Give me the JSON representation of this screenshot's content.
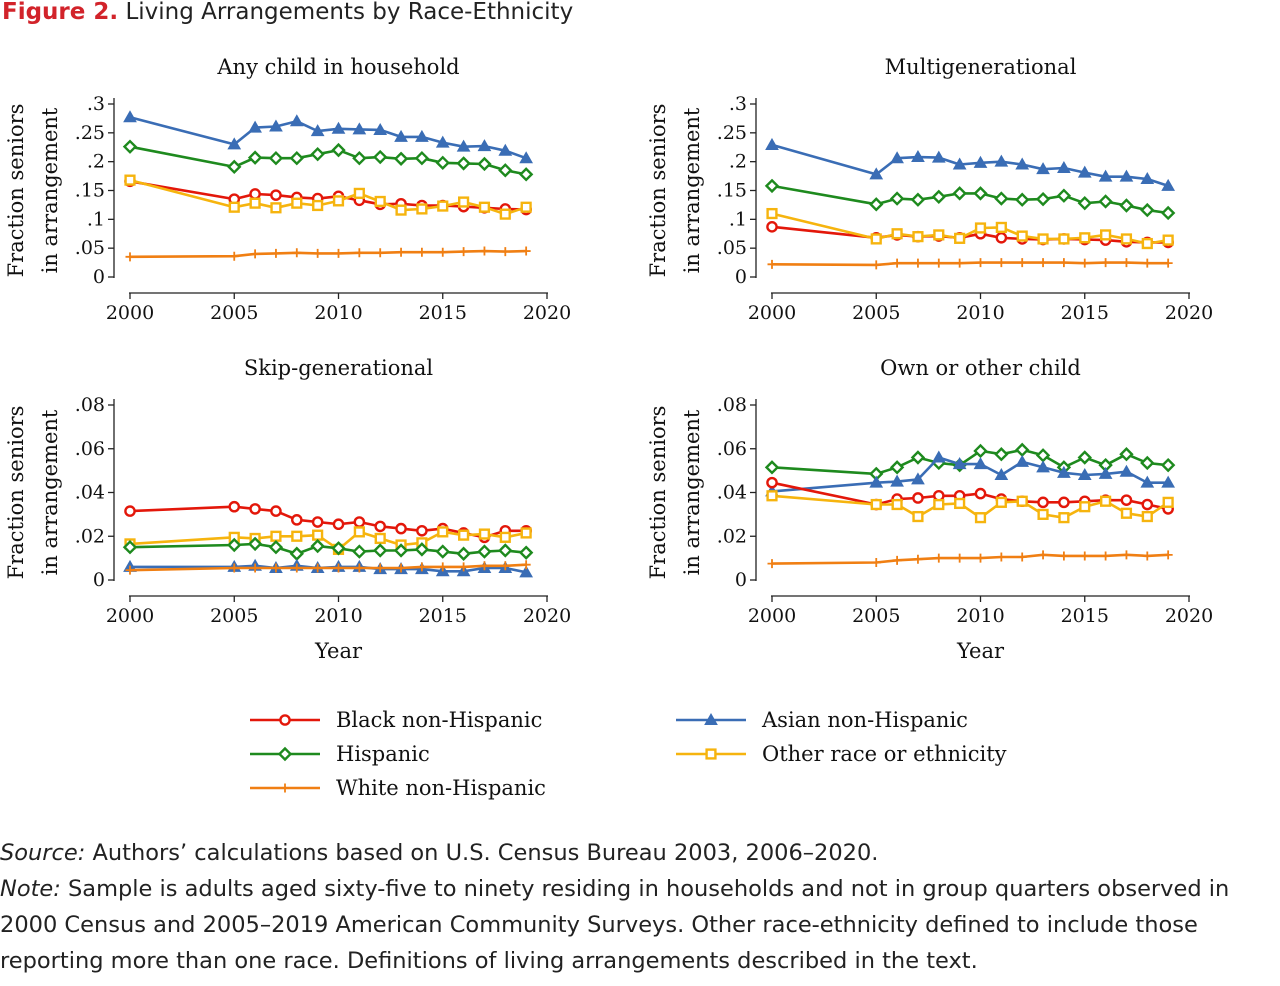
{
  "figure": {
    "number": "Figure 2.",
    "title": "Living Arrangements by Race-Ethnicity"
  },
  "legend": {
    "placement": "bottom",
    "entries": [
      {
        "key": "black",
        "label": "Black non-Hispanic"
      },
      {
        "key": "asian",
        "label": "Asian non-Hispanic"
      },
      {
        "key": "hispanic",
        "label": "Hispanic"
      },
      {
        "key": "other",
        "label": "Other race or ethnicity"
      },
      {
        "key": "white",
        "label": "White non-Hispanic"
      }
    ]
  },
  "styles": {
    "black": {
      "color": "#e3170a",
      "marker": "circle"
    },
    "hispanic": {
      "color": "#1e8a1e",
      "marker": "diamond"
    },
    "white": {
      "color": "#f07f13",
      "marker": "plus"
    },
    "asian": {
      "color": "#3a6db5",
      "marker": "triangle"
    },
    "other": {
      "color": "#f6b40e",
      "marker": "square"
    }
  },
  "chart_data": [
    {
      "type": "line",
      "title": "Any child in household",
      "ylabel": "Fraction seniors in arrangement",
      "xlabel": "",
      "xlim": [
        2000,
        2020
      ],
      "ylim": [
        0,
        0.3
      ],
      "xticks": [
        2000,
        2005,
        2010,
        2015,
        2020
      ],
      "xticklabels": [
        "2000",
        "2005",
        "2010",
        "2015",
        "2020"
      ],
      "yticks": [
        0,
        0.05,
        0.1,
        0.15,
        0.2,
        0.25,
        0.3
      ],
      "yticklabels": [
        "0",
        ".05",
        ".1",
        ".15",
        ".2",
        ".25",
        ".3"
      ],
      "x": [
        2000,
        2005,
        2006,
        2007,
        2008,
        2009,
        2010,
        2011,
        2012,
        2013,
        2014,
        2015,
        2016,
        2017,
        2018,
        2019
      ],
      "series": [
        {
          "key": "asian",
          "values": [
            0.277,
            0.23,
            0.259,
            0.261,
            0.27,
            0.253,
            0.257,
            0.256,
            0.255,
            0.243,
            0.243,
            0.233,
            0.226,
            0.227,
            0.219,
            0.206
          ]
        },
        {
          "key": "hispanic",
          "values": [
            0.226,
            0.191,
            0.207,
            0.206,
            0.206,
            0.213,
            0.22,
            0.206,
            0.208,
            0.205,
            0.206,
            0.198,
            0.197,
            0.196,
            0.185,
            0.178
          ]
        },
        {
          "key": "black",
          "values": [
            0.166,
            0.135,
            0.144,
            0.142,
            0.138,
            0.136,
            0.14,
            0.133,
            0.126,
            0.127,
            0.124,
            0.124,
            0.122,
            0.12,
            0.118,
            0.117
          ]
        },
        {
          "key": "other",
          "values": [
            0.168,
            0.121,
            0.128,
            0.12,
            0.128,
            0.124,
            0.132,
            0.145,
            0.131,
            0.116,
            0.118,
            0.123,
            0.13,
            0.121,
            0.109,
            0.121
          ]
        },
        {
          "key": "white",
          "values": [
            0.035,
            0.036,
            0.04,
            0.041,
            0.042,
            0.041,
            0.041,
            0.042,
            0.042,
            0.043,
            0.043,
            0.043,
            0.044,
            0.045,
            0.044,
            0.045
          ]
        }
      ]
    },
    {
      "type": "line",
      "title": "Multigenerational",
      "ylabel": "Fraction seniors in arrangement",
      "xlabel": "",
      "xlim": [
        2000,
        2020
      ],
      "ylim": [
        0,
        0.3
      ],
      "xticks": [
        2000,
        2005,
        2010,
        2015,
        2020
      ],
      "xticklabels": [
        "2000",
        "2005",
        "2010",
        "2015",
        "2020"
      ],
      "yticks": [
        0,
        0.05,
        0.1,
        0.15,
        0.2,
        0.25,
        0.3
      ],
      "yticklabels": [
        "0",
        ".05",
        ".1",
        ".15",
        ".2",
        ".25",
        ".3"
      ],
      "x": [
        2000,
        2005,
        2006,
        2007,
        2008,
        2009,
        2010,
        2011,
        2012,
        2013,
        2014,
        2015,
        2016,
        2017,
        2018,
        2019
      ],
      "series": [
        {
          "key": "asian",
          "values": [
            0.229,
            0.178,
            0.206,
            0.208,
            0.207,
            0.195,
            0.198,
            0.2,
            0.195,
            0.187,
            0.189,
            0.181,
            0.174,
            0.174,
            0.17,
            0.158
          ]
        },
        {
          "key": "hispanic",
          "values": [
            0.158,
            0.126,
            0.136,
            0.134,
            0.139,
            0.145,
            0.145,
            0.136,
            0.134,
            0.135,
            0.141,
            0.128,
            0.131,
            0.124,
            0.116,
            0.111
          ]
        },
        {
          "key": "black",
          "values": [
            0.087,
            0.068,
            0.073,
            0.07,
            0.071,
            0.068,
            0.075,
            0.068,
            0.066,
            0.065,
            0.066,
            0.065,
            0.064,
            0.061,
            0.06,
            0.06
          ]
        },
        {
          "key": "other",
          "values": [
            0.11,
            0.066,
            0.075,
            0.07,
            0.073,
            0.067,
            0.085,
            0.086,
            0.071,
            0.066,
            0.066,
            0.068,
            0.073,
            0.066,
            0.058,
            0.064
          ]
        },
        {
          "key": "white",
          "values": [
            0.022,
            0.021,
            0.024,
            0.024,
            0.024,
            0.024,
            0.025,
            0.025,
            0.025,
            0.025,
            0.025,
            0.024,
            0.025,
            0.025,
            0.024,
            0.024
          ]
        }
      ]
    },
    {
      "type": "line",
      "title": "Skip-generational",
      "ylabel": "Fraction seniors in arrangement",
      "xlabel": "Year",
      "xlim": [
        2000,
        2020
      ],
      "ylim": [
        0,
        0.08
      ],
      "xticks": [
        2000,
        2005,
        2010,
        2015,
        2020
      ],
      "xticklabels": [
        "2000",
        "2005",
        "2010",
        "2015",
        "2020"
      ],
      "yticks": [
        0,
        0.02,
        0.04,
        0.06,
        0.08
      ],
      "yticklabels": [
        "0",
        ".02",
        ".04",
        ".06",
        ".08"
      ],
      "x": [
        2000,
        2005,
        2006,
        2007,
        2008,
        2009,
        2010,
        2011,
        2012,
        2013,
        2014,
        2015,
        2016,
        2017,
        2018,
        2019
      ],
      "series": [
        {
          "key": "black",
          "values": [
            0.0315,
            0.0335,
            0.0325,
            0.0315,
            0.0275,
            0.0265,
            0.0255,
            0.0265,
            0.0245,
            0.0235,
            0.0225,
            0.0235,
            0.0215,
            0.0195,
            0.0225,
            0.0225
          ]
        },
        {
          "key": "other",
          "values": [
            0.0165,
            0.0195,
            0.019,
            0.02,
            0.02,
            0.0205,
            0.014,
            0.022,
            0.019,
            0.016,
            0.017,
            0.022,
            0.0205,
            0.021,
            0.0195,
            0.0215
          ]
        },
        {
          "key": "hispanic",
          "values": [
            0.015,
            0.016,
            0.0165,
            0.015,
            0.012,
            0.0155,
            0.0145,
            0.013,
            0.0135,
            0.0135,
            0.014,
            0.013,
            0.012,
            0.013,
            0.0135,
            0.0125
          ]
        },
        {
          "key": "asian",
          "values": [
            0.006,
            0.006,
            0.0065,
            0.0055,
            0.0065,
            0.0055,
            0.006,
            0.006,
            0.005,
            0.005,
            0.005,
            0.004,
            0.004,
            0.0055,
            0.0055,
            0.0035
          ]
        },
        {
          "key": "white",
          "values": [
            0.0045,
            0.0055,
            0.0055,
            0.0055,
            0.0055,
            0.0055,
            0.0055,
            0.0055,
            0.0055,
            0.0055,
            0.006,
            0.006,
            0.006,
            0.0065,
            0.0065,
            0.007
          ]
        }
      ]
    },
    {
      "type": "line",
      "title": "Own or other child",
      "ylabel": "Fraction seniors in arrangement",
      "xlabel": "Year",
      "xlim": [
        2000,
        2020
      ],
      "ylim": [
        0,
        0.08
      ],
      "xticks": [
        2000,
        2005,
        2010,
        2015,
        2020
      ],
      "xticklabels": [
        "2000",
        "2005",
        "2010",
        "2015",
        "2020"
      ],
      "yticks": [
        0,
        0.02,
        0.04,
        0.06,
        0.08
      ],
      "yticklabels": [
        "0",
        ".02",
        ".04",
        ".06",
        ".08"
      ],
      "x": [
        2000,
        2005,
        2006,
        2007,
        2008,
        2009,
        2010,
        2011,
        2012,
        2013,
        2014,
        2015,
        2016,
        2017,
        2018,
        2019
      ],
      "series": [
        {
          "key": "hispanic",
          "values": [
            0.0515,
            0.0485,
            0.0515,
            0.056,
            0.0535,
            0.0525,
            0.059,
            0.0575,
            0.0595,
            0.057,
            0.0515,
            0.056,
            0.0525,
            0.0575,
            0.0535,
            0.0525
          ]
        },
        {
          "key": "asian",
          "values": [
            0.0405,
            0.0445,
            0.045,
            0.046,
            0.056,
            0.053,
            0.053,
            0.048,
            0.054,
            0.0515,
            0.049,
            0.048,
            0.0485,
            0.0495,
            0.0445,
            0.0445
          ]
        },
        {
          "key": "black",
          "values": [
            0.0445,
            0.0345,
            0.037,
            0.0375,
            0.0385,
            0.0385,
            0.0395,
            0.037,
            0.036,
            0.0355,
            0.0355,
            0.036,
            0.0365,
            0.0365,
            0.0345,
            0.0325
          ]
        },
        {
          "key": "other",
          "values": [
            0.0385,
            0.0345,
            0.0345,
            0.029,
            0.0345,
            0.035,
            0.0285,
            0.0355,
            0.036,
            0.03,
            0.0285,
            0.0335,
            0.036,
            0.0305,
            0.029,
            0.0355
          ]
        },
        {
          "key": "white",
          "values": [
            0.0075,
            0.008,
            0.009,
            0.0095,
            0.01,
            0.01,
            0.01,
            0.0105,
            0.0105,
            0.0115,
            0.011,
            0.011,
            0.011,
            0.0115,
            0.011,
            0.0115
          ]
        }
      ]
    }
  ],
  "notes": {
    "source_label": "Source:",
    "source_text": " Authors’ calculations based on U.S. Census Bureau 2003, 2006–2020.",
    "note_label": "Note:",
    "note_text": " Sample is adults aged sixty-five to ninety residing in households and not in group quarters observed in 2000 Census and 2005–2019 American Community Surveys. Other race-ethnicity defined to include those reporting more than one race. Definitions of living arrangements described in the text."
  }
}
